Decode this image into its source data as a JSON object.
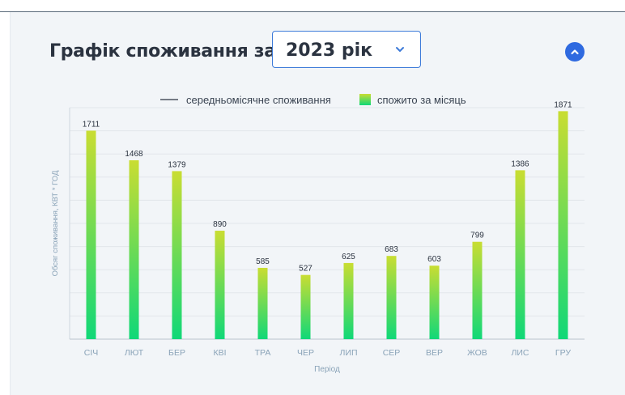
{
  "header": {
    "title": "Графік споживання за",
    "year_select": {
      "value": "2023 рік"
    }
  },
  "colors": {
    "bar_top": "#c9dd32",
    "bar_bottom": "#10d878",
    "accent": "#2f6ae0",
    "axis_text": "#8aa3b8",
    "grid": "#e2e6eb"
  },
  "icons": {
    "year_toggle": "chevron-down-icon",
    "collapse": "chevron-up-icon"
  },
  "chart_data": {
    "type": "bar",
    "categories": [
      "СІЧ",
      "ЛЮТ",
      "БЕР",
      "КВІ",
      "ТРА",
      "ЧЕР",
      "ЛИП",
      "СЕР",
      "ВЕР",
      "ЖОВ",
      "ЛИС",
      "ГРУ"
    ],
    "series": [
      {
        "name": "спожито за місяць",
        "values": [
          1711,
          1468,
          1379,
          890,
          585,
          527,
          625,
          683,
          603,
          799,
          1386,
          1871
        ]
      }
    ],
    "legend": [
      "середньомісячне споживання",
      "спожито за місяць"
    ],
    "legend_position": "top-center",
    "xlabel": "Період",
    "ylabel": "Обсяг споживання, КВТ * ГОД",
    "ylim": [
      0,
      1900
    ],
    "grid": true,
    "show_y_tick_labels": false
  }
}
